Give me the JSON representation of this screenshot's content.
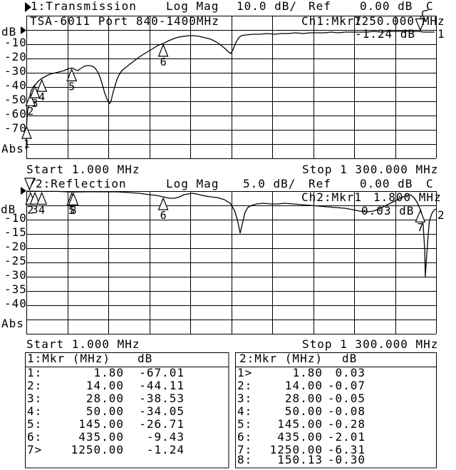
{
  "header1": {
    "title": "1:Transmission",
    "format": "Log Mag",
    "scale": "10.0 dB/",
    "ref_label": "Ref",
    "ref_value": "0.00 dB",
    "cal": "C"
  },
  "header2": {
    "title": "2:Reflection",
    "format": "Log Mag",
    "scale": "5.0 dB/",
    "ref_label": "Ref",
    "ref_value": "0.00 dB",
    "cal": "C"
  },
  "graph1": {
    "unit": "dB",
    "abs": "Abs",
    "label": "TSA-6011 Port 840-1400MHz",
    "trace_number": "1",
    "readout": {
      "ch": "Ch1:Mkr7",
      "freq": "1250.000 MHz",
      "value": "-1.24 dB"
    },
    "start": "Start 1.000 MHz",
    "stop": "Stop 1 300.000 MHz",
    "y_labels": [
      "-10",
      "-20",
      "-30",
      "-40",
      "-50",
      "-60",
      "-70"
    ]
  },
  "graph2": {
    "unit": "dB",
    "abs": "Abs",
    "trace_number": "2",
    "readout": {
      "ch": "Ch2:Mkr1",
      "freq": "1.800 MHz",
      "value": "0.03 dB"
    },
    "start": "Start 1.000 MHz",
    "stop": "Stop 1 300.000 MHz",
    "y_labels": [
      "-10",
      "-15",
      "-20",
      "-25",
      "-30",
      "-35",
      "-40"
    ]
  },
  "tables": {
    "left": {
      "title": "1:Mkr (MHz)",
      "unit": "dB",
      "rows": [
        [
          "1:",
          "1.80",
          "-67.01"
        ],
        [
          "2:",
          "14.00",
          "-44.11"
        ],
        [
          "3:",
          "28.00",
          "-38.53"
        ],
        [
          "4:",
          "50.00",
          "-34.05"
        ],
        [
          "5:",
          "145.00",
          "-26.71"
        ],
        [
          "6:",
          "435.00",
          "-9.43"
        ],
        [
          "7>",
          "1250.00",
          "-1.24"
        ]
      ]
    },
    "right": {
      "title": "2:Mkr (MHz)",
      "unit": "dB",
      "rows": [
        [
          "1>",
          "1.80",
          "0.03"
        ],
        [
          "2:",
          "14.00",
          "-0.07"
        ],
        [
          "3:",
          "28.00",
          "-0.05"
        ],
        [
          "4:",
          "50.00",
          "-0.08"
        ],
        [
          "5:",
          "145.00",
          "-0.28"
        ],
        [
          "6:",
          "435.00",
          "-2.01"
        ],
        [
          "7:",
          "1250.00",
          "-6.31"
        ],
        [
          "8:",
          "150.13",
          "-0.30"
        ]
      ]
    }
  },
  "chart_data": [
    {
      "type": "line",
      "title": "1:Transmission",
      "x_unit": "MHz",
      "y_unit": "dB",
      "x_range": [
        1,
        1300
      ],
      "ref_db": 0,
      "db_per_div": 10,
      "divisions": 10,
      "grid": true,
      "xlabel": "Start 1.000 MHz / Stop 1 300.000 MHz",
      "ylabel": "dB (Abs)",
      "markers": [
        {
          "n": 1,
          "freq": 1.8,
          "db": -67.01
        },
        {
          "n": 2,
          "freq": 14,
          "db": -44.11
        },
        {
          "n": 3,
          "freq": 28,
          "db": -38.53
        },
        {
          "n": 4,
          "freq": 50,
          "db": -34.05
        },
        {
          "n": 5,
          "freq": 145,
          "db": -26.71
        },
        {
          "n": 6,
          "freq": 435,
          "db": -9.43
        },
        {
          "n": 7,
          "freq": 1250,
          "db": -1.24,
          "active": true
        }
      ],
      "points": [
        [
          1,
          -84
        ],
        [
          1.5,
          -76
        ],
        [
          2,
          -67
        ],
        [
          3,
          -61.5
        ],
        [
          5,
          -56.5
        ],
        [
          8,
          -52.5
        ],
        [
          11,
          -48.5
        ],
        [
          14,
          -44.1
        ],
        [
          17,
          -42.5
        ],
        [
          20,
          -41
        ],
        [
          24,
          -39.5
        ],
        [
          28,
          -38.5
        ],
        [
          33,
          -37.5
        ],
        [
          38,
          -36
        ],
        [
          44,
          -35
        ],
        [
          50,
          -34
        ],
        [
          58,
          -33
        ],
        [
          66,
          -32
        ],
        [
          76,
          -31
        ],
        [
          85,
          -30.5
        ],
        [
          94,
          -30
        ],
        [
          103,
          -29.5
        ],
        [
          112,
          -29
        ],
        [
          121,
          -28.5
        ],
        [
          130,
          -27.5
        ],
        [
          139,
          -27
        ],
        [
          145,
          -26.7
        ],
        [
          150,
          -27
        ],
        [
          157,
          -28
        ],
        [
          164,
          -28.5
        ],
        [
          170,
          -27.5
        ],
        [
          177,
          -26.5
        ],
        [
          184,
          -25.5
        ],
        [
          193,
          -25
        ],
        [
          202,
          -25
        ],
        [
          211,
          -25.5
        ],
        [
          220,
          -27
        ],
        [
          229,
          -30
        ],
        [
          236,
          -34
        ],
        [
          243,
          -39
        ],
        [
          249,
          -44
        ],
        [
          256,
          -48
        ],
        [
          261,
          -50.5
        ],
        [
          265,
          -51.5
        ],
        [
          270,
          -49.5
        ],
        [
          274,
          -45.5
        ],
        [
          281,
          -40
        ],
        [
          288,
          -35
        ],
        [
          295,
          -31.5
        ],
        [
          304,
          -28.5
        ],
        [
          315,
          -26.5
        ],
        [
          329,
          -24
        ],
        [
          344,
          -21.5
        ],
        [
          362,
          -18.5
        ],
        [
          380,
          -16
        ],
        [
          399,
          -13.5
        ],
        [
          417,
          -11
        ],
        [
          435,
          -9.4
        ],
        [
          453,
          -7.5
        ],
        [
          469,
          -6
        ],
        [
          484,
          -5
        ],
        [
          500,
          -4.5
        ],
        [
          516,
          -4
        ],
        [
          532,
          -4
        ],
        [
          550,
          -4.5
        ],
        [
          568,
          -5.5
        ],
        [
          586,
          -6.5
        ],
        [
          604,
          -8.5
        ],
        [
          620,
          -11
        ],
        [
          633,
          -13.5
        ],
        [
          642,
          -15.5
        ],
        [
          649,
          -16.5
        ],
        [
          656,
          -14
        ],
        [
          665,
          -9
        ],
        [
          674,
          -5.5
        ],
        [
          683,
          -4
        ],
        [
          697,
          -3.5
        ],
        [
          719,
          -3
        ],
        [
          742,
          -3
        ],
        [
          764,
          -2.5
        ],
        [
          787,
          -3
        ],
        [
          810,
          -2.5
        ],
        [
          832,
          -2.5
        ],
        [
          855,
          -2
        ],
        [
          877,
          -2.5
        ],
        [
          900,
          -2
        ],
        [
          923,
          -2
        ],
        [
          945,
          -2
        ],
        [
          968,
          -1.5
        ],
        [
          990,
          -2
        ],
        [
          1013,
          -1.5
        ],
        [
          1036,
          -1.5
        ],
        [
          1058,
          -1.5
        ],
        [
          1081,
          -1.5
        ],
        [
          1103,
          -1
        ],
        [
          1126,
          -1.5
        ],
        [
          1148,
          -1
        ],
        [
          1171,
          -1
        ],
        [
          1194,
          -1
        ],
        [
          1216,
          -1
        ],
        [
          1239,
          -1
        ],
        [
          1250,
          -1.2
        ],
        [
          1261,
          -1.5
        ],
        [
          1273,
          -1.5
        ],
        [
          1284,
          -1.5
        ],
        [
          1295,
          -1.5
        ]
      ]
    },
    {
      "type": "line",
      "title": "2:Reflection",
      "x_unit": "MHz",
      "y_unit": "dB",
      "x_range": [
        1,
        1300
      ],
      "ref_db": 0,
      "db_per_div": 5,
      "divisions": 10,
      "grid": true,
      "xlabel": "Start 1.000 MHz / Stop 1 300.000 MHz",
      "ylabel": "dB (Abs)",
      "markers": [
        {
          "n": 1,
          "freq": 1.8,
          "db": 0.03,
          "active": true,
          "dx": 4
        },
        {
          "n": 2,
          "freq": 14,
          "db": -0.07
        },
        {
          "n": 3,
          "freq": 28,
          "db": -0.05
        },
        {
          "n": 4,
          "freq": 50,
          "db": -0.08
        },
        {
          "n": 5,
          "freq": 145,
          "db": -0.28
        },
        {
          "n": 6,
          "freq": 435,
          "db": -2.01
        },
        {
          "n": 7,
          "freq": 1250,
          "db": -6.31
        },
        {
          "n": 8,
          "freq": 150.13,
          "db": -0.3
        }
      ],
      "points": [
        [
          1,
          0
        ],
        [
          50,
          -0.1
        ],
        [
          100,
          -0.1
        ],
        [
          145,
          -0.3
        ],
        [
          200,
          -0.2
        ],
        [
          256,
          -0.25
        ],
        [
          290,
          -0.25
        ],
        [
          324,
          -0.5
        ],
        [
          358,
          -0.75
        ],
        [
          392,
          -1.25
        ],
        [
          414,
          -1.5
        ],
        [
          435,
          -2
        ],
        [
          455,
          -2.5
        ],
        [
          471,
          -2.5
        ],
        [
          487,
          -2
        ],
        [
          500,
          -1.25
        ],
        [
          514,
          -1
        ],
        [
          527,
          -0.75
        ],
        [
          541,
          -1
        ],
        [
          559,
          -1.5
        ],
        [
          584,
          -2
        ],
        [
          606,
          -2.25
        ],
        [
          629,
          -3
        ],
        [
          647,
          -4.25
        ],
        [
          661,
          -6.75
        ],
        [
          670,
          -10
        ],
        [
          679,
          -14.75
        ],
        [
          685,
          -11.75
        ],
        [
          694,
          -7.5
        ],
        [
          703,
          -5.75
        ],
        [
          715,
          -5
        ],
        [
          731,
          -4.5
        ],
        [
          753,
          -4.25
        ],
        [
          776,
          -4.5
        ],
        [
          798,
          -4.5
        ],
        [
          821,
          -4.25
        ],
        [
          848,
          -4.5
        ],
        [
          875,
          -4.75
        ],
        [
          902,
          -5
        ],
        [
          929,
          -5.25
        ],
        [
          956,
          -5.5
        ],
        [
          983,
          -5.75
        ],
        [
          1011,
          -6
        ],
        [
          1036,
          -6.5
        ],
        [
          1058,
          -7
        ],
        [
          1081,
          -7.25
        ],
        [
          1101,
          -7
        ],
        [
          1119,
          -6.25
        ],
        [
          1137,
          -5.25
        ],
        [
          1155,
          -4.25
        ],
        [
          1173,
          -3.25
        ],
        [
          1191,
          -2.25
        ],
        [
          1207,
          -1.5
        ],
        [
          1219,
          -1.25
        ],
        [
          1230,
          -2.25
        ],
        [
          1239,
          -3.75
        ],
        [
          1246,
          -5.5
        ],
        [
          1250,
          -6.3
        ],
        [
          1255,
          -8
        ],
        [
          1259,
          -11.75
        ],
        [
          1264,
          -20.5
        ],
        [
          1266,
          -30
        ],
        [
          1270,
          -23
        ],
        [
          1275,
          -15.5
        ],
        [
          1279,
          -10.5
        ],
        [
          1286,
          -8
        ],
        [
          1293,
          -6.75
        ],
        [
          1300,
          -6.25
        ]
      ]
    }
  ]
}
